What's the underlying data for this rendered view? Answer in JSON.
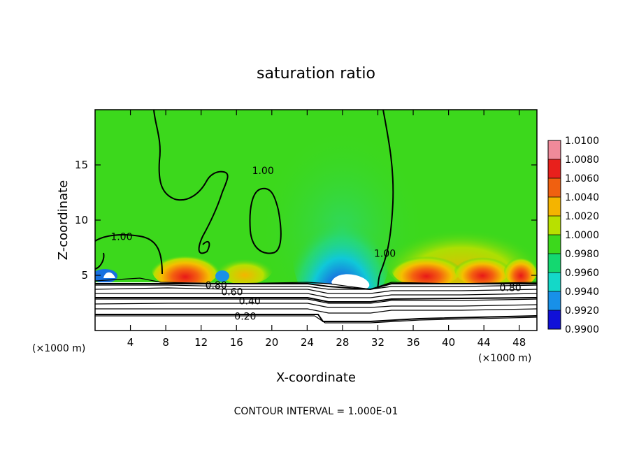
{
  "chart_data": {
    "type": "heatmap",
    "title": "saturation ratio",
    "xlabel": "X-coordinate",
    "ylabel": "Z-coordinate",
    "x_unit": "(×1000 m)",
    "x_unit_right": "(×1000 m)",
    "footer": "CONTOUR INTERVAL = 1.000E-01",
    "xlim": [
      0,
      50
    ],
    "ylim": [
      0,
      20
    ],
    "x_ticks": [
      4,
      8,
      12,
      16,
      20,
      24,
      28,
      32,
      36,
      40,
      44,
      48
    ],
    "x_tick_labels": [
      "4",
      "8",
      "12",
      "16",
      "20",
      "24",
      "28",
      "32",
      "36",
      "40",
      "44",
      "48"
    ],
    "y_ticks": [
      5,
      10,
      15
    ],
    "y_tick_labels": [
      "5",
      "10",
      "15"
    ],
    "colorbar": {
      "levels": [
        "1.0100",
        "1.0080",
        "1.0060",
        "1.0040",
        "1.0020",
        "1.0000",
        "0.9980",
        "0.9960",
        "0.9940",
        "0.9920",
        "0.9900"
      ],
      "colors": [
        "#f08a9a",
        "#e8201c",
        "#f06010",
        "#f4b400",
        "#b8e000",
        "#3cd81c",
        "#14d870",
        "#14d8c8",
        "#1890e8",
        "#1010d8",
        "#7020b0"
      ]
    },
    "contour_labels": [
      {
        "text": "1.00",
        "x": 19.0,
        "z": 14.5
      },
      {
        "text": "1.00",
        "x": 3.0,
        "z": 8.5
      },
      {
        "text": "1.00",
        "x": 32.8,
        "z": 7.0
      },
      {
        "text": "0.80",
        "x": 13.7,
        "z": 4.1
      },
      {
        "text": "0.60",
        "x": 15.5,
        "z": 3.5
      },
      {
        "text": "0.40",
        "x": 17.5,
        "z": 2.7
      },
      {
        "text": "0.20",
        "x": 17.0,
        "z": 1.3
      },
      {
        "text": "0.80",
        "x": 47.0,
        "z": 3.9
      }
    ]
  }
}
